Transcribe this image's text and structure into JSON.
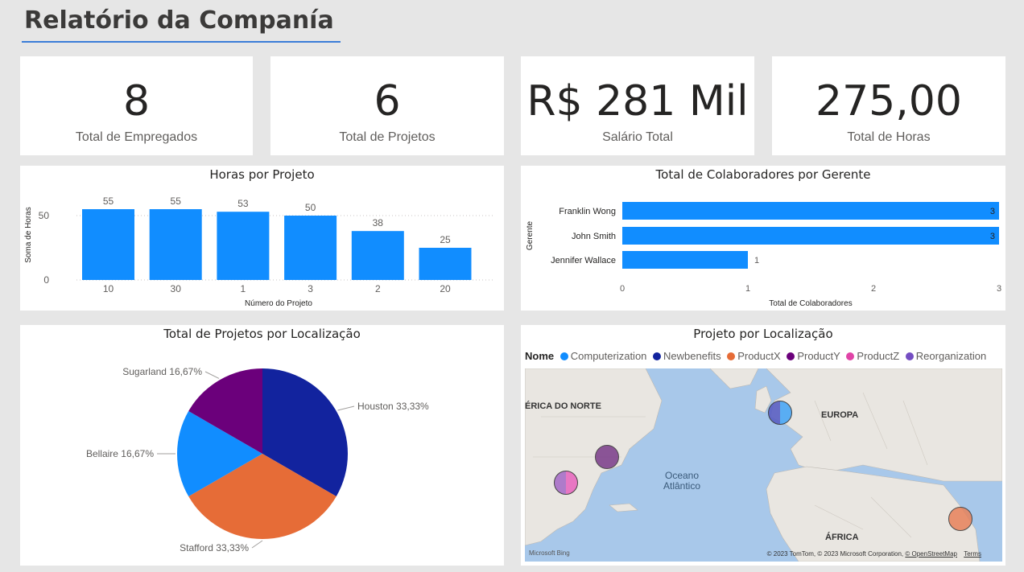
{
  "page": {
    "title": "Relatório da Companía"
  },
  "kpis": [
    {
      "value": "8",
      "label": "Total de Empregados"
    },
    {
      "value": "6",
      "label": "Total de Projetos"
    },
    {
      "value": "R$ 281 Mil",
      "label": "Salário Total"
    },
    {
      "value": "275,00",
      "label": "Total de Horas"
    }
  ],
  "bar_chart": {
    "title": "Horas por Projeto",
    "xlabel": "Número do Projeto",
    "ylabel": "Soma de Horas",
    "ticks": [
      "50",
      "0"
    ],
    "color": "#118dff"
  },
  "hbar_chart": {
    "title": "Total de Colaboradores por Gerente",
    "xlabel": "Total de Colaboradores",
    "ylabel": "Gerente",
    "ticks": [
      "0",
      "1",
      "2",
      "3"
    ],
    "color": "#118dff"
  },
  "pie_chart": {
    "title": "Total de Projetos por Localização"
  },
  "map": {
    "title": "Projeto por Localização",
    "legend_title": "Nome",
    "legend": [
      {
        "name": "Computerization",
        "color": "#118dff"
      },
      {
        "name": "Newbenefits",
        "color": "#12239e"
      },
      {
        "name": "ProductX",
        "color": "#e66c37"
      },
      {
        "name": "ProductY",
        "color": "#6b007b"
      },
      {
        "name": "ProductZ",
        "color": "#e044a7"
      },
      {
        "name": "Reorganization",
        "color": "#744ec2"
      }
    ],
    "labels": {
      "north_africa": "ÉRICA DO NORTE",
      "europe": "EUROPA",
      "africa": "ÁFRICA",
      "ocean_1": "Oceano",
      "ocean_2": "Atlântico"
    },
    "provider": "Microsoft Bing",
    "attribution": "© 2023 TomTom, © 2023 Microsoft Corporation,",
    "osm_link": "© OpenStreetMap",
    "terms": "Terms"
  },
  "chart_data": [
    {
      "type": "bar",
      "title": "Horas por Projeto",
      "xlabel": "Número do Projeto",
      "ylabel": "Soma de Horas",
      "categories": [
        "10",
        "30",
        "1",
        "3",
        "2",
        "20"
      ],
      "values": [
        55,
        55,
        53,
        50,
        38,
        25
      ],
      "ylim": [
        0,
        60
      ],
      "grid": true
    },
    {
      "type": "bar",
      "orientation": "horizontal",
      "title": "Total de Colaboradores por Gerente",
      "xlabel": "Total de Colaboradores",
      "ylabel": "Gerente",
      "categories": [
        "Franklin Wong",
        "John Smith",
        "Jennifer Wallace"
      ],
      "values": [
        3,
        3,
        1
      ],
      "xlim": [
        0,
        3
      ]
    },
    {
      "type": "pie",
      "title": "Total de Projetos por Localização",
      "categories": [
        "Houston",
        "Stafford",
        "Bellaire",
        "Sugarland"
      ],
      "values": [
        33.33,
        33.33,
        16.67,
        16.67
      ],
      "labels": [
        "Houston 33,33%",
        "Stafford 33,33%",
        "Bellaire 16,67%",
        "Sugarland 16,67%"
      ],
      "colors": [
        "#12239e",
        "#e66c37",
        "#118dff",
        "#6b007b"
      ]
    }
  ]
}
